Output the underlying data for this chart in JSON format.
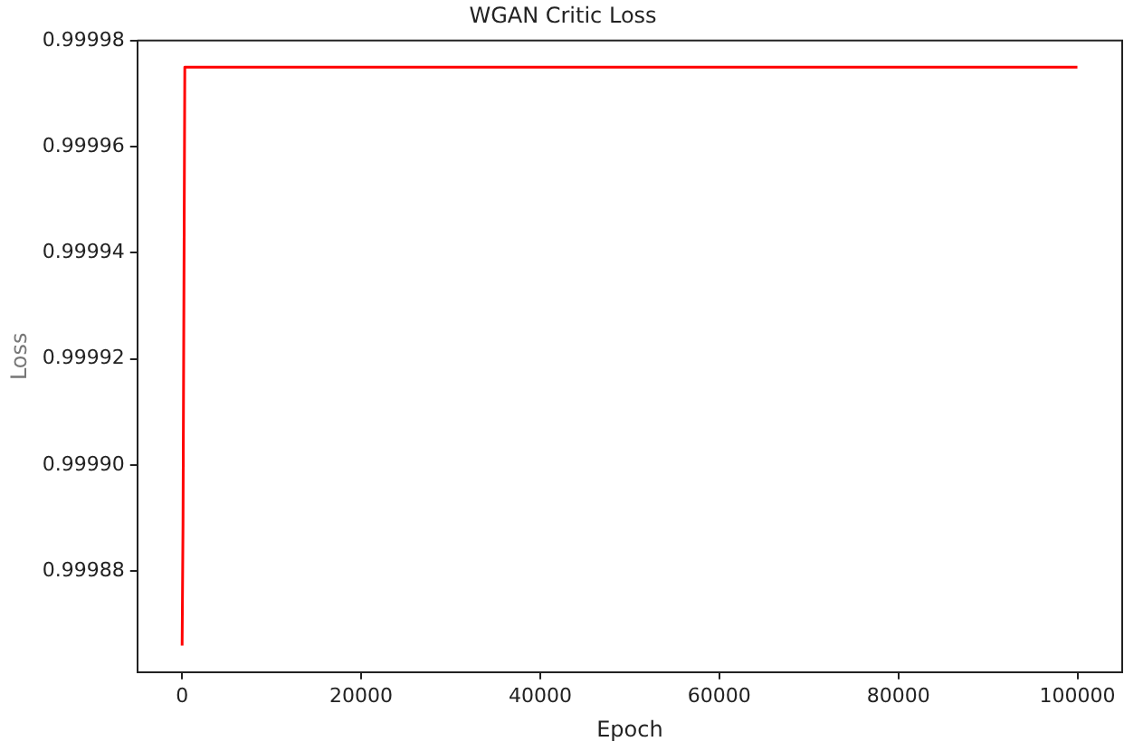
{
  "chart_data": {
    "type": "line",
    "title": "WGAN Critic Loss",
    "xlabel": "Epoch",
    "ylabel": "Loss",
    "series": [
      {
        "color": "#ff0000",
        "x": [
          0,
          100,
          300,
          100000
        ],
        "values": [
          0.999866,
          0.999889,
          0.999975,
          0.999975
        ]
      }
    ],
    "xlim": [
      -5000,
      105000
    ],
    "xticks": [
      0,
      20000,
      40000,
      60000,
      80000,
      100000
    ],
    "ylim": [
      0.999861,
      0.99998
    ],
    "yticks": [
      0.99988,
      {
        "value": 0.9999,
        "label": "0.99990"
      },
      0.99992,
      0.99994,
      0.99996,
      0.99998
    ],
    "grid": false,
    "legend": false,
    "marker": "none",
    "line_style": "solid"
  }
}
